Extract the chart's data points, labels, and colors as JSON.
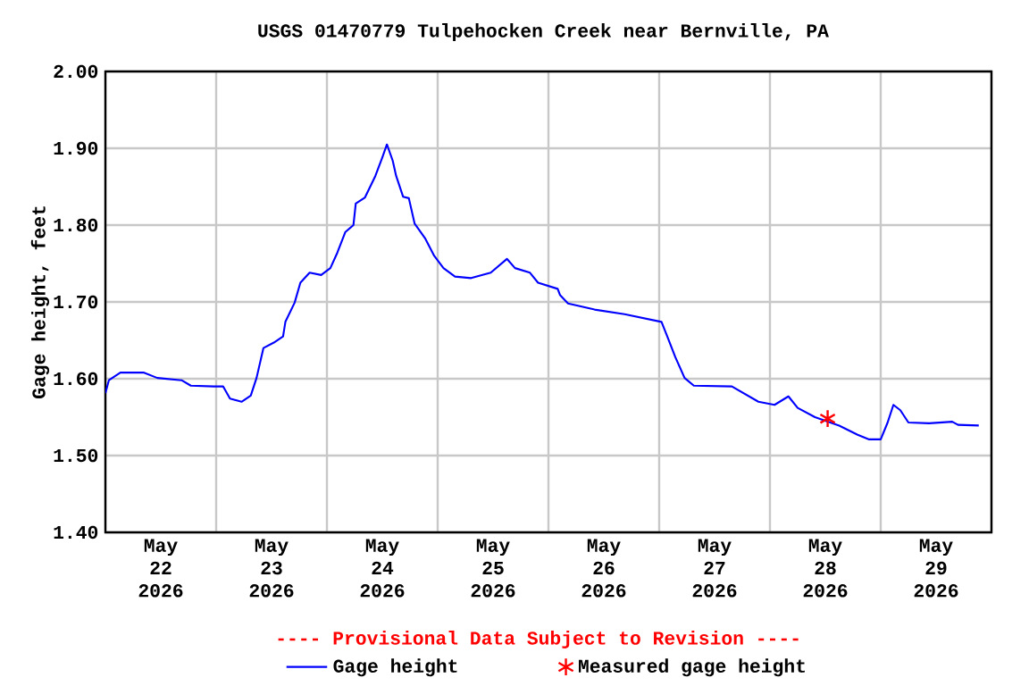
{
  "chart_data": {
    "type": "line",
    "title": "USGS 01470779 Tulpehocken Creek near Bernville, PA",
    "ylabel": "Gage height, feet",
    "annotations": [
      "---- Provisional Data Subject to Revision ----"
    ],
    "xlim": [
      "2026-05-22T00:00",
      "2026-05-30T00:00"
    ],
    "xticks": [
      {
        "value": "2026-05-22T00:00",
        "label": null
      },
      {
        "value": "2026-05-22T12:00",
        "label": "May 22 2026"
      },
      {
        "value": "2026-05-23T00:00",
        "label": null
      },
      {
        "value": "2026-05-23T12:00",
        "label": "May 23 2026"
      },
      {
        "value": "2026-05-24T00:00",
        "label": null
      },
      {
        "value": "2026-05-24T12:00",
        "label": "May 24 2026"
      },
      {
        "value": "2026-05-25T00:00",
        "label": null
      },
      {
        "value": "2026-05-25T12:00",
        "label": "May 25 2026"
      },
      {
        "value": "2026-05-26T00:00",
        "label": null
      },
      {
        "value": "2026-05-26T12:00",
        "label": "May 26 2026"
      },
      {
        "value": "2026-05-27T00:00",
        "label": null
      },
      {
        "value": "2026-05-27T12:00",
        "label": "May 27 2026"
      },
      {
        "value": "2026-05-28T00:00",
        "label": null
      },
      {
        "value": "2026-05-28T12:00",
        "label": "May 28 2026"
      },
      {
        "value": "2026-05-29T00:00",
        "label": null
      },
      {
        "value": "2026-05-29T12:00",
        "label": "May 29 2026"
      },
      {
        "value": "2026-05-30T00:00",
        "label": null
      }
    ],
    "ylim": [
      1.4,
      2.0
    ],
    "yticks": [
      {
        "value": 1.4,
        "label": "1.40"
      },
      {
        "value": 1.5,
        "label": "1.50"
      },
      {
        "value": 1.6,
        "label": "1.60"
      },
      {
        "value": 1.7,
        "label": "1.70"
      },
      {
        "value": 1.8,
        "label": "1.80"
      },
      {
        "value": 1.9,
        "label": "1.90"
      },
      {
        "value": 2.0,
        "label": "2.00"
      }
    ],
    "grid": true,
    "legend": "bottom",
    "series": [
      {
        "name": "Gage height",
        "color": "#0000ff",
        "marker": "none",
        "x": [
          "2026-05-22T00:00",
          "2026-05-22T00:45",
          "2026-05-22T03:15",
          "2026-05-22T08:15",
          "2026-05-22T11:15",
          "2026-05-22T16:30",
          "2026-05-22T18:30",
          "2026-05-22T23:30",
          "2026-05-23T01:30",
          "2026-05-23T03:00",
          "2026-05-23T05:30",
          "2026-05-23T07:30",
          "2026-05-23T08:45",
          "2026-05-23T10:15",
          "2026-05-23T12:30",
          "2026-05-23T14:30",
          "2026-05-23T15:00",
          "2026-05-23T17:00",
          "2026-05-23T18:15",
          "2026-05-23T20:15",
          "2026-05-23T22:45",
          "2026-05-24T00:45",
          "2026-05-24T02:15",
          "2026-05-24T04:00",
          "2026-05-24T05:45",
          "2026-05-24T06:15",
          "2026-05-24T08:15",
          "2026-05-24T10:30",
          "2026-05-24T12:00",
          "2026-05-24T13:00",
          "2026-05-24T14:15",
          "2026-05-24T15:00",
          "2026-05-24T16:30",
          "2026-05-24T17:45",
          "2026-05-24T19:00",
          "2026-05-24T21:15",
          "2026-05-24T23:15",
          "2026-05-25T01:15",
          "2026-05-25T03:45",
          "2026-05-25T07:15",
          "2026-05-25T11:30",
          "2026-05-25T15:00",
          "2026-05-25T16:45",
          "2026-05-25T20:00",
          "2026-05-25T21:45",
          "2026-05-26T02:00",
          "2026-05-26T02:30",
          "2026-05-26T04:15",
          "2026-05-26T10:00",
          "2026-05-26T16:30",
          "2026-05-27T00:30",
          "2026-05-27T01:45",
          "2026-05-27T03:30",
          "2026-05-27T05:30",
          "2026-05-27T07:30",
          "2026-05-27T15:45",
          "2026-05-27T21:30",
          "2026-05-28T01:00",
          "2026-05-28T04:00",
          "2026-05-28T06:00",
          "2026-05-28T09:45",
          "2026-05-28T15:00",
          "2026-05-28T19:00",
          "2026-05-28T21:30",
          "2026-05-29T00:00",
          "2026-05-29T01:30",
          "2026-05-29T02:45",
          "2026-05-29T04:15",
          "2026-05-29T06:00",
          "2026-05-29T10:30",
          "2026-05-29T15:30",
          "2026-05-29T16:45",
          "2026-05-29T21:15"
        ],
        "values": [
          1.581,
          1.598,
          1.608,
          1.608,
          1.601,
          1.598,
          1.591,
          1.59,
          1.59,
          1.574,
          1.57,
          1.578,
          1.601,
          1.64,
          1.647,
          1.655,
          1.674,
          1.699,
          1.725,
          1.738,
          1.735,
          1.744,
          1.764,
          1.791,
          1.8,
          1.828,
          1.836,
          1.864,
          1.888,
          1.905,
          1.884,
          1.864,
          1.837,
          1.835,
          1.802,
          1.783,
          1.76,
          1.744,
          1.733,
          1.731,
          1.738,
          1.756,
          1.744,
          1.738,
          1.725,
          1.717,
          1.709,
          1.698,
          1.69,
          1.684,
          1.674,
          1.655,
          1.628,
          1.601,
          1.591,
          1.59,
          1.57,
          1.566,
          1.577,
          1.562,
          1.55,
          1.539,
          1.527,
          1.521,
          1.521,
          1.543,
          1.566,
          1.559,
          1.543,
          1.542,
          1.544,
          1.54,
          1.539
        ]
      },
      {
        "name": "Measured gage height",
        "type": "scatter",
        "color": "#ff0000",
        "marker": "cross",
        "x": [
          "2026-05-28T12:30"
        ],
        "values": [
          1.548
        ]
      }
    ]
  }
}
